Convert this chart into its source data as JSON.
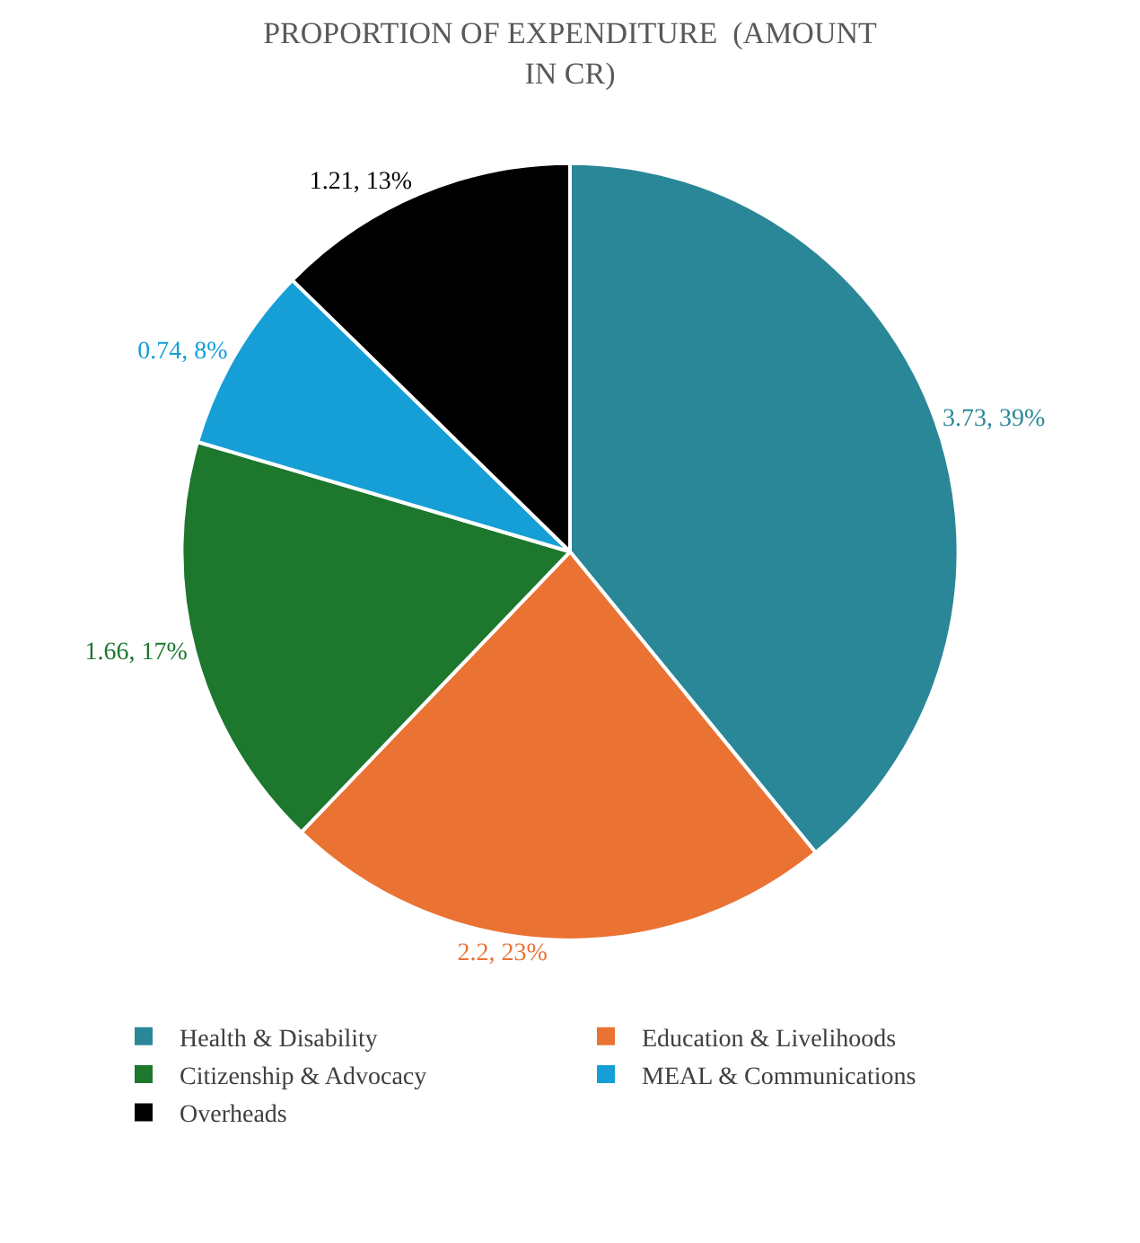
{
  "chart_data": {
    "type": "pie",
    "title": "PROPORTION OF EXPENDITURE  (AMOUNT IN CR)",
    "categories": [
      "Health & Disability",
      "Education & Livelihoods",
      "Citizenship & Advocacy",
      "MEAL & Communications",
      "Overheads"
    ],
    "values": [
      3.73,
      2.2,
      1.66,
      0.74,
      1.21
    ],
    "value_labels": [
      "3.73, 39%",
      "2.2, 23%",
      "1.66, 17%",
      "0.74, 8%",
      "1.21, 13%"
    ],
    "colors": [
      "#2a8797",
      "#ea7232",
      "#1d772d",
      "#169fd6",
      "#000000"
    ],
    "legend": "bottom"
  }
}
